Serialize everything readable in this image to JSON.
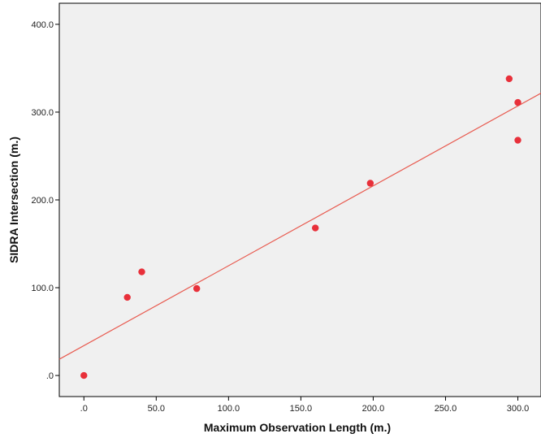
{
  "chart_data": {
    "type": "scatter",
    "title": "",
    "xlabel": "Maximum Observation Length (m.)",
    "ylabel": "SIDRA Intersection (m.)",
    "xlim": [
      -17,
      316
    ],
    "ylim": [
      -24,
      424
    ],
    "xticks": [
      0,
      50,
      100,
      150,
      200,
      250,
      300
    ],
    "xtick_labels": [
      ".0",
      "50.0",
      "100.0",
      "150.0",
      "200.0",
      "250.0",
      "300.0"
    ],
    "yticks": [
      0,
      100,
      200,
      300,
      400
    ],
    "ytick_labels": [
      ".0",
      "100.0",
      "200.0",
      "300.0",
      "400.0"
    ],
    "grid": false,
    "points": [
      {
        "x": 0,
        "y": 0
      },
      {
        "x": 30,
        "y": 89
      },
      {
        "x": 40,
        "y": 118
      },
      {
        "x": 78,
        "y": 99
      },
      {
        "x": 160,
        "y": 168
      },
      {
        "x": 198,
        "y": 219
      },
      {
        "x": 294,
        "y": 338
      },
      {
        "x": 300,
        "y": 311
      },
      {
        "x": 300,
        "y": 268
      }
    ],
    "fit_line": {
      "intercept": 34,
      "slope": 0.91
    },
    "colors": {
      "point": "#e8303a",
      "line": "#e85a4f",
      "plot_background": "#f0f0f0",
      "frame": "#000000"
    }
  }
}
